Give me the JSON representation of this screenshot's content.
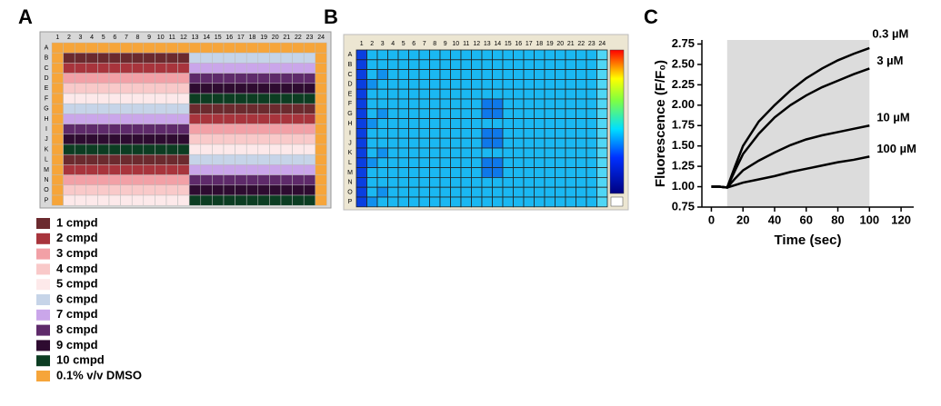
{
  "panels": {
    "a": "A",
    "b": "B",
    "c": "C"
  },
  "plate_a": {
    "rows": [
      "A",
      "B",
      "C",
      "D",
      "E",
      "F",
      "G",
      "H",
      "I",
      "J",
      "K",
      "L",
      "M",
      "N",
      "O",
      "P"
    ],
    "columns": [
      1,
      2,
      3,
      4,
      5,
      6,
      7,
      8,
      9,
      10,
      11,
      12,
      13,
      14,
      15,
      16,
      17,
      18,
      19,
      20,
      21,
      22,
      23,
      24
    ],
    "legend": [
      {
        "label": "1 cmpd",
        "color": "#6b2a2e"
      },
      {
        "label": "2 cmpd",
        "color": "#a8343c"
      },
      {
        "label": "3 cmpd",
        "color": "#f2a0a6"
      },
      {
        "label": "4 cmpd",
        "color": "#f9c9c9"
      },
      {
        "label": "5 cmpd",
        "color": "#fde9ea"
      },
      {
        "label": "6 cmpd",
        "color": "#c6d4e8"
      },
      {
        "label": "7 cmpd",
        "color": "#caa6ea"
      },
      {
        "label": "8 cmpd",
        "color": "#5e2a6a"
      },
      {
        "label": "9 cmpd",
        "color": "#2e0b30"
      },
      {
        "label": "10 cmpd",
        "color": "#0c3d22"
      },
      {
        "label": "0.1% v/v DMSO",
        "color": "#f6a53a"
      }
    ],
    "row_fill": [
      [
        10,
        10
      ],
      [
        0,
        5
      ],
      [
        1,
        6
      ],
      [
        2,
        7
      ],
      [
        3,
        8
      ],
      [
        4,
        9
      ],
      [
        5,
        0
      ],
      [
        6,
        1
      ],
      [
        7,
        2
      ],
      [
        8,
        3
      ],
      [
        9,
        4
      ],
      [
        0,
        5
      ],
      [
        1,
        6
      ],
      [
        2,
        7
      ],
      [
        3,
        8
      ],
      [
        4,
        9
      ]
    ]
  },
  "plate_b": {
    "rows": [
      "A",
      "B",
      "C",
      "D",
      "E",
      "F",
      "G",
      "H",
      "I",
      "J",
      "K",
      "L",
      "M",
      "N",
      "O",
      "P"
    ],
    "columns": [
      1,
      2,
      3,
      4,
      5,
      6,
      7,
      8,
      9,
      10,
      11,
      12,
      13,
      14,
      15,
      16,
      17,
      18,
      19,
      20,
      21,
      22,
      23,
      24
    ]
  },
  "chart_data": {
    "type": "line",
    "x_label": "Time (sec)",
    "y_label": "Fluorescence (F/F₀)",
    "x": [
      0,
      5,
      10,
      15,
      20,
      30,
      40,
      50,
      60,
      70,
      80,
      90,
      100
    ],
    "series": [
      {
        "name": "0.3 µM",
        "color": "#000000",
        "values": [
          1.0,
          1.0,
          0.99,
          1.25,
          1.5,
          1.8,
          2.0,
          2.18,
          2.33,
          2.45,
          2.55,
          2.63,
          2.7
        ]
      },
      {
        "name": "3 µM",
        "color": "#000000",
        "values": [
          1.0,
          1.0,
          0.99,
          1.2,
          1.4,
          1.65,
          1.85,
          2.0,
          2.12,
          2.22,
          2.3,
          2.38,
          2.45
        ]
      },
      {
        "name": "10 µM",
        "color": "#000000",
        "values": [
          1.0,
          1.0,
          0.99,
          1.1,
          1.2,
          1.32,
          1.42,
          1.51,
          1.58,
          1.63,
          1.67,
          1.71,
          1.75
        ]
      },
      {
        "name": "100 µM",
        "color": "#000000",
        "values": [
          1.0,
          1.0,
          0.99,
          1.02,
          1.05,
          1.09,
          1.13,
          1.18,
          1.22,
          1.26,
          1.3,
          1.33,
          1.37
        ]
      }
    ],
    "shaded_x": [
      10,
      100
    ],
    "shade_color": "#dcdcdc",
    "xlim": [
      -6,
      128
    ],
    "xticks": [
      0,
      20,
      40,
      60,
      80,
      100,
      120
    ],
    "ylim": [
      0.75,
      2.8
    ],
    "yticks": [
      0.75,
      {
        "value": 1,
        "label": "1.00"
      },
      1.25,
      {
        "value": 1.5,
        "label": "1.50"
      },
      1.75,
      {
        "value": 2,
        "label": "2.00"
      },
      2.25,
      {
        "value": 2.5,
        "label": "2.50"
      },
      2.75
    ]
  }
}
